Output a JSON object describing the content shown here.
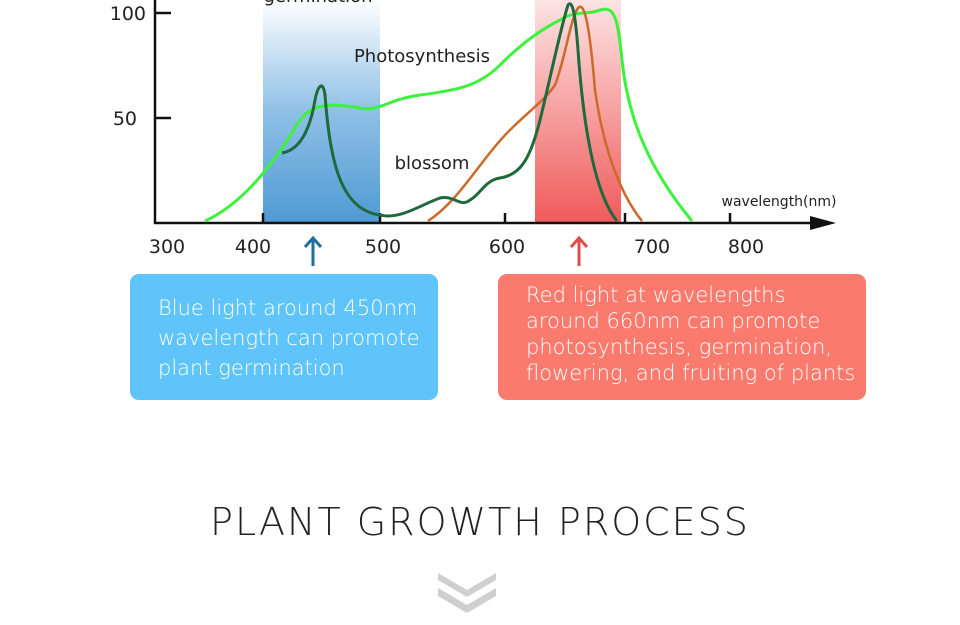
{
  "diagram": {
    "y_ticks": [
      100,
      50
    ],
    "x_ticks": [
      300,
      400,
      500,
      600,
      700,
      800
    ],
    "x_axis_label": "wavelength(nm)",
    "curve_labels": {
      "germination": "germination",
      "photosynthesis": "Photosynthesis",
      "blossom": "blossom"
    }
  },
  "notes": [
    {
      "lines": [
        "Blue light around 450nm",
        "wavelength can promote",
        "plant germination"
      ]
    },
    {
      "lines": [
        "Red light at wavelengths",
        "around 660nm can promote",
        "photosynthesis, germination,",
        "flowering, and fruiting of plants"
      ]
    }
  ],
  "section_title": "PLANT GROWTH PROCESS"
}
